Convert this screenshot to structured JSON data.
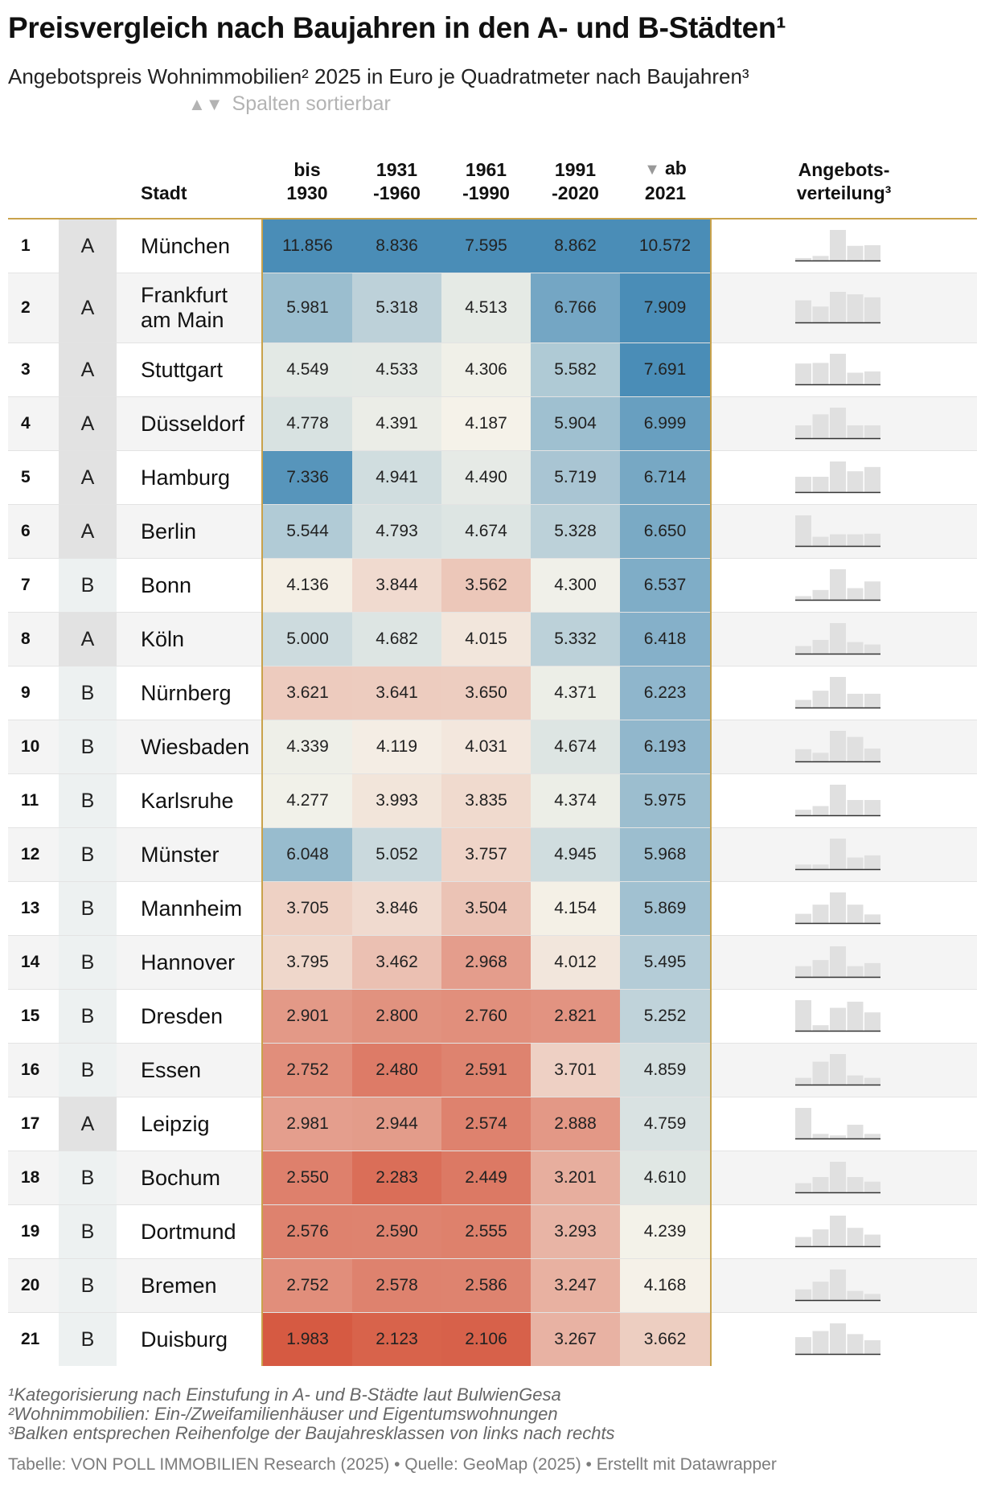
{
  "title": "Preisvergleich nach Baujahren in den A- und B-Städten¹",
  "subtitle": "Angebotspreis Wohnimmobilien² 2025 in Euro je Quadratmeter nach Baujahren³",
  "sort_hint": "Spalten sortierbar",
  "sort_arrows": "▲▼",
  "columns": {
    "rank": "",
    "category": "",
    "city": "Stadt",
    "c1": [
      "bis",
      "1930"
    ],
    "c2": [
      "1931",
      "-1960"
    ],
    "c3": [
      "1961",
      "-1990"
    ],
    "c4": [
      "1991",
      "-2020"
    ],
    "c5": [
      "ab",
      "2021"
    ],
    "sort_indicator": "▼",
    "dist": [
      "Angebots-",
      "verteilung³"
    ]
  },
  "colors": {
    "accent": "#c9a24b",
    "scale_low": "#d65a42",
    "scale_mid": "#f5f3ea",
    "scale_high": "#4a8db7",
    "bar": "#e0e0e0",
    "bar_baseline": "#333333"
  },
  "chart_data": {
    "type": "table",
    "title": "Preisvergleich nach Baujahren in den A- und B-Städten¹",
    "unit": "Euro je Quadratmeter",
    "categories": [
      "bis 1930",
      "1931-1960",
      "1961-1990",
      "1991-2020",
      "ab 2021"
    ],
    "sorted_by": "ab 2021",
    "rows": [
      {
        "rank": "1",
        "cat": "A",
        "city": "München",
        "values": [
          "11.856",
          "8.836",
          "7.595",
          "8.862",
          "10.572"
        ],
        "dist": [
          0.08,
          0.15,
          1.0,
          0.48,
          0.5
        ]
      },
      {
        "rank": "2",
        "cat": "A",
        "city": "Frankfurt am Main",
        "values": [
          "5.981",
          "5.318",
          "4.513",
          "6.766",
          "7.909"
        ],
        "dist": [
          0.72,
          0.52,
          1.0,
          0.92,
          0.82
        ]
      },
      {
        "rank": "3",
        "cat": "A",
        "city": "Stuttgart",
        "values": [
          "4.549",
          "4.533",
          "4.306",
          "5.582",
          "7.691"
        ],
        "dist": [
          0.68,
          0.7,
          1.0,
          0.38,
          0.42
        ]
      },
      {
        "rank": "4",
        "cat": "A",
        "city": "Düsseldorf",
        "values": [
          "4.778",
          "4.391",
          "4.187",
          "5.904",
          "6.999"
        ],
        "dist": [
          0.42,
          0.78,
          1.0,
          0.42,
          0.42
        ]
      },
      {
        "rank": "5",
        "cat": "A",
        "city": "Hamburg",
        "values": [
          "7.336",
          "4.941",
          "4.490",
          "5.719",
          "6.714"
        ],
        "dist": [
          0.5,
          0.5,
          1.0,
          0.68,
          0.82
        ]
      },
      {
        "rank": "6",
        "cat": "A",
        "city": "Berlin",
        "values": [
          "5.544",
          "4.793",
          "4.674",
          "5.328",
          "6.650"
        ],
        "dist": [
          1.0,
          0.3,
          0.38,
          0.38,
          0.4
        ]
      },
      {
        "rank": "7",
        "cat": "B",
        "city": "Bonn",
        "values": [
          "4.136",
          "3.844",
          "3.562",
          "4.300",
          "6.537"
        ],
        "dist": [
          0.12,
          0.32,
          1.0,
          0.38,
          0.6
        ]
      },
      {
        "rank": "8",
        "cat": "A",
        "city": "Köln",
        "values": [
          "5.000",
          "4.682",
          "4.015",
          "5.332",
          "6.418"
        ],
        "dist": [
          0.25,
          0.45,
          1.0,
          0.38,
          0.3
        ]
      },
      {
        "rank": "9",
        "cat": "B",
        "city": "Nürnberg",
        "values": [
          "3.621",
          "3.641",
          "3.650",
          "4.371",
          "6.223"
        ],
        "dist": [
          0.25,
          0.55,
          1.0,
          0.45,
          0.45
        ]
      },
      {
        "rank": "10",
        "cat": "B",
        "city": "Wiesbaden",
        "values": [
          "4.339",
          "4.119",
          "4.031",
          "4.674",
          "6.193"
        ],
        "dist": [
          0.4,
          0.28,
          1.0,
          0.8,
          0.42
        ]
      },
      {
        "rank": "11",
        "cat": "B",
        "city": "Karlsruhe",
        "values": [
          "4.277",
          "3.993",
          "3.835",
          "4.374",
          "5.975"
        ],
        "dist": [
          0.18,
          0.3,
          1.0,
          0.5,
          0.5
        ]
      },
      {
        "rank": "12",
        "cat": "B",
        "city": "Münster",
        "values": [
          "6.048",
          "5.052",
          "3.757",
          "4.945",
          "5.968"
        ],
        "dist": [
          0.15,
          0.15,
          1.0,
          0.38,
          0.45
        ]
      },
      {
        "rank": "13",
        "cat": "B",
        "city": "Mannheim",
        "values": [
          "3.705",
          "3.846",
          "3.504",
          "4.154",
          "5.869"
        ],
        "dist": [
          0.3,
          0.6,
          1.0,
          0.6,
          0.28
        ]
      },
      {
        "rank": "14",
        "cat": "B",
        "city": "Hannover",
        "values": [
          "3.795",
          "3.462",
          "2.968",
          "4.012",
          "5.495"
        ],
        "dist": [
          0.35,
          0.55,
          1.0,
          0.35,
          0.45
        ]
      },
      {
        "rank": "15",
        "cat": "B",
        "city": "Dresden",
        "values": [
          "2.901",
          "2.800",
          "2.760",
          "2.821",
          "5.252"
        ],
        "dist": [
          1.0,
          0.18,
          0.75,
          0.95,
          0.6
        ]
      },
      {
        "rank": "16",
        "cat": "B",
        "city": "Essen",
        "values": [
          "2.752",
          "2.480",
          "2.591",
          "3.701",
          "4.859"
        ],
        "dist": [
          0.22,
          0.75,
          1.0,
          0.3,
          0.22
        ]
      },
      {
        "rank": "17",
        "cat": "A",
        "city": "Leipzig",
        "values": [
          "2.981",
          "2.944",
          "2.574",
          "2.888",
          "4.759"
        ],
        "dist": [
          1.0,
          0.15,
          0.1,
          0.45,
          0.15
        ]
      },
      {
        "rank": "18",
        "cat": "B",
        "city": "Bochum",
        "values": [
          "2.550",
          "2.283",
          "2.449",
          "3.201",
          "4.610"
        ],
        "dist": [
          0.3,
          0.5,
          1.0,
          0.5,
          0.35
        ]
      },
      {
        "rank": "19",
        "cat": "B",
        "city": "Dortmund",
        "values": [
          "2.576",
          "2.590",
          "2.555",
          "3.293",
          "4.239"
        ],
        "dist": [
          0.3,
          0.55,
          1.0,
          0.6,
          0.38
        ]
      },
      {
        "rank": "20",
        "cat": "B",
        "city": "Bremen",
        "values": [
          "2.752",
          "2.578",
          "2.586",
          "3.247",
          "4.168"
        ],
        "dist": [
          0.35,
          0.6,
          1.0,
          0.3,
          0.2
        ]
      },
      {
        "rank": "21",
        "cat": "B",
        "city": "Duisburg",
        "values": [
          "1.983",
          "2.123",
          "2.106",
          "3.267",
          "3.662"
        ],
        "dist": [
          0.55,
          0.75,
          1.0,
          0.65,
          0.45
        ]
      }
    ]
  },
  "footnotes": [
    "¹Kategorisierung nach Einstufung in A- und B-Städte laut BulwienGesa",
    "²Wohnimmobilien: Ein-/Zweifamilienhäuser und Eigentumswohnungen",
    "³Balken entsprechen Reihenfolge der Baujahresklassen von links nach rechts"
  ],
  "source": "Tabelle: VON POLL IMMOBILIEN Research (2025) • Quelle: GeoMap (2025) • Erstellt mit Datawrapper"
}
